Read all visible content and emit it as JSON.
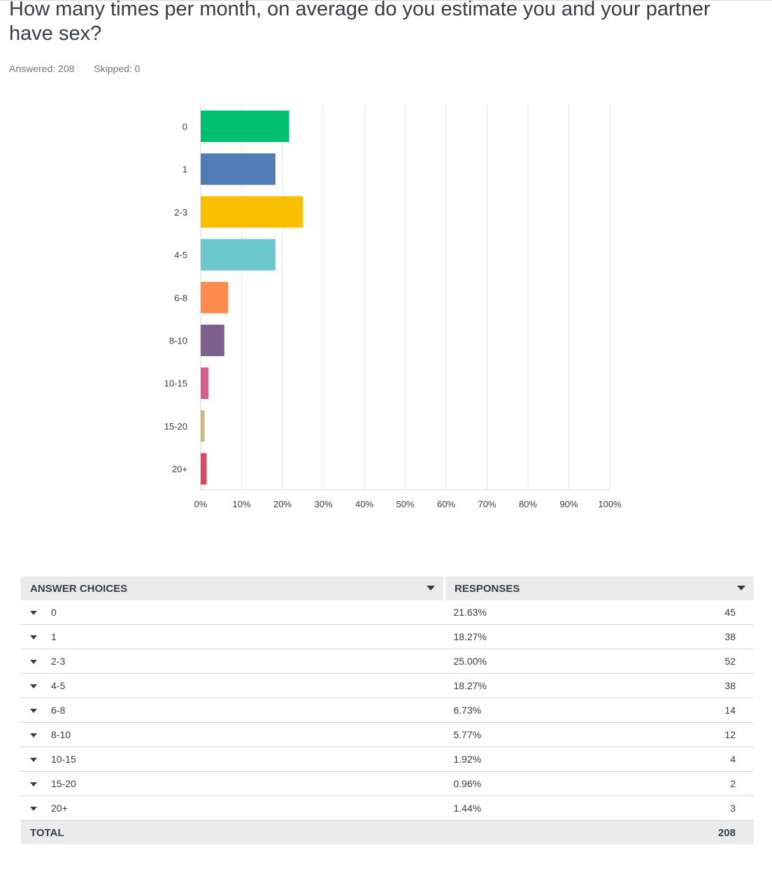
{
  "question": {
    "title": "How many times per month, on average do you estimate you and your partner have sex?",
    "answered_label": "Answered: 208",
    "skipped_label": "Skipped: 0"
  },
  "chart_data": {
    "type": "bar",
    "orientation": "horizontal",
    "categories": [
      "0",
      "1",
      "2-3",
      "4-5",
      "6-8",
      "8-10",
      "10-15",
      "15-20",
      "20+"
    ],
    "values": [
      21.63,
      18.27,
      25.0,
      18.27,
      6.73,
      5.77,
      1.92,
      0.96,
      1.44
    ],
    "colors": [
      "#00bf6f",
      "#507cb6",
      "#f9be00",
      "#6bc8cd",
      "#ff8b4f",
      "#7f5f90",
      "#d25f90",
      "#c9b97d",
      "#d74a5f"
    ],
    "xlim": [
      0,
      100
    ],
    "x_ticks": [
      "0%",
      "10%",
      "20%",
      "30%",
      "40%",
      "50%",
      "60%",
      "70%",
      "80%",
      "90%",
      "100%"
    ],
    "grid": true,
    "title": "",
    "xlabel": "",
    "ylabel": ""
  },
  "table": {
    "headers": {
      "choices": "ANSWER CHOICES",
      "responses": "RESPONSES"
    },
    "rows": [
      {
        "choice": "0",
        "percent": "21.63%",
        "count": "45"
      },
      {
        "choice": "1",
        "percent": "18.27%",
        "count": "38"
      },
      {
        "choice": "2-3",
        "percent": "25.00%",
        "count": "52"
      },
      {
        "choice": "4-5",
        "percent": "18.27%",
        "count": "38"
      },
      {
        "choice": "6-8",
        "percent": "6.73%",
        "count": "14"
      },
      {
        "choice": "8-10",
        "percent": "5.77%",
        "count": "12"
      },
      {
        "choice": "10-15",
        "percent": "1.92%",
        "count": "4"
      },
      {
        "choice": "15-20",
        "percent": "0.96%",
        "count": "2"
      },
      {
        "choice": "20+",
        "percent": "1.44%",
        "count": "3"
      }
    ],
    "total_label": "TOTAL",
    "total_value": "208"
  }
}
